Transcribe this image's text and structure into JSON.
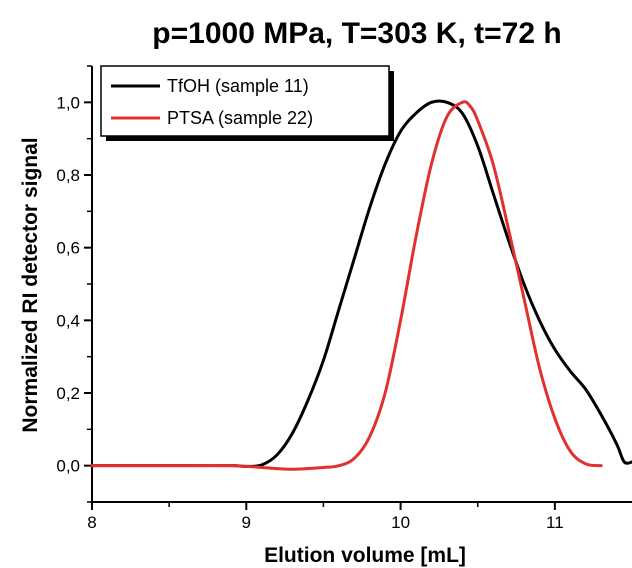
{
  "chart_data": {
    "type": "line",
    "title": "p=1000 MPa, T=303 K, t=72 h",
    "xlabel": "Elution volume [mL]",
    "ylabel": "Normalized RI detector signal",
    "xlim": [
      8,
      11.5
    ],
    "ylim": [
      -0.1,
      1.1
    ],
    "x_ticks": [
      "8",
      "9",
      "10",
      "11"
    ],
    "y_ticks": [
      "0,0",
      "0,2",
      "0,4",
      "0,6",
      "0,8",
      "1,0"
    ],
    "x_tick_values": [
      8,
      9,
      10,
      11
    ],
    "y_tick_values": [
      0,
      0.2,
      0.4,
      0.6,
      0.8,
      1.0
    ],
    "grid": false,
    "legend_position": "top-left",
    "series": [
      {
        "name": "TfOH (sample 11)",
        "color": "#000000",
        "points": [
          [
            8.0,
            0.0
          ],
          [
            8.5,
            0.0
          ],
          [
            8.9,
            0.0
          ],
          [
            9.0,
            -0.002
          ],
          [
            9.1,
            0.002
          ],
          [
            9.2,
            0.03
          ],
          [
            9.3,
            0.09
          ],
          [
            9.4,
            0.18
          ],
          [
            9.5,
            0.29
          ],
          [
            9.6,
            0.43
          ],
          [
            9.7,
            0.57
          ],
          [
            9.8,
            0.71
          ],
          [
            9.9,
            0.83
          ],
          [
            10.0,
            0.92
          ],
          [
            10.1,
            0.97
          ],
          [
            10.2,
            1.0
          ],
          [
            10.3,
            1.0
          ],
          [
            10.4,
            0.97
          ],
          [
            10.5,
            0.88
          ],
          [
            10.6,
            0.75
          ],
          [
            10.7,
            0.62
          ],
          [
            10.8,
            0.5
          ],
          [
            10.9,
            0.4
          ],
          [
            11.0,
            0.32
          ],
          [
            11.1,
            0.26
          ],
          [
            11.2,
            0.21
          ],
          [
            11.3,
            0.14
          ],
          [
            11.4,
            0.06
          ],
          [
            11.45,
            0.01
          ],
          [
            11.5,
            0.01
          ]
        ]
      },
      {
        "name": "PTSA (sample 22)",
        "color": "#e03030",
        "points": [
          [
            8.0,
            0.0
          ],
          [
            8.5,
            0.0
          ],
          [
            8.9,
            0.0
          ],
          [
            9.1,
            -0.005
          ],
          [
            9.3,
            -0.01
          ],
          [
            9.5,
            -0.005
          ],
          [
            9.6,
            0.0
          ],
          [
            9.7,
            0.02
          ],
          [
            9.8,
            0.08
          ],
          [
            9.9,
            0.2
          ],
          [
            10.0,
            0.4
          ],
          [
            10.1,
            0.63
          ],
          [
            10.2,
            0.83
          ],
          [
            10.3,
            0.96
          ],
          [
            10.4,
            1.0
          ],
          [
            10.45,
            0.99
          ],
          [
            10.5,
            0.95
          ],
          [
            10.6,
            0.83
          ],
          [
            10.7,
            0.65
          ],
          [
            10.8,
            0.46
          ],
          [
            10.9,
            0.27
          ],
          [
            11.0,
            0.13
          ],
          [
            11.1,
            0.04
          ],
          [
            11.2,
            0.005
          ],
          [
            11.3,
            0.0
          ]
        ]
      }
    ]
  }
}
